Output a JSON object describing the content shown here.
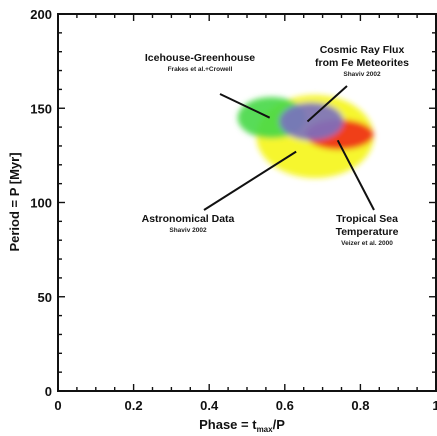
{
  "chart_data": {
    "type": "scatter",
    "title": "",
    "xlabel": "Phase = t",
    "xlabel_sub": "max",
    "xlabel_tail": "/P",
    "ylabel": "Period = P [Myr]",
    "xlim": [
      0,
      1
    ],
    "ylim": [
      0,
      200
    ],
    "x_ticks": [
      "0",
      "0.2",
      "0.4",
      "0.6",
      "0.8",
      "1"
    ],
    "y_ticks": [
      "0",
      "50",
      "100",
      "150",
      "200"
    ],
    "grid": false,
    "regions": [
      {
        "key": "astronomical",
        "color": "#f5f51a",
        "cx": 0.68,
        "cy": 135,
        "rx": 0.155,
        "ry": 22
      },
      {
        "key": "icehouse",
        "color": "#46d846",
        "cx": 0.565,
        "cy": 145,
        "rx": 0.09,
        "ry": 11
      },
      {
        "key": "tropical",
        "color": "#f02a1a",
        "cx": 0.745,
        "cy": 136,
        "rx": 0.09,
        "ry": 8
      },
      {
        "key": "cosmic",
        "color": "#7a6fc2",
        "cx": 0.67,
        "cy": 143,
        "rx": 0.085,
        "ry": 10
      }
    ],
    "annotations": [
      {
        "key": "icehouse",
        "title_lines": [
          "Icehouse-Greenhouse"
        ],
        "source": "Frakes et al.+Crowell",
        "point": [
          0.56,
          145
        ]
      },
      {
        "key": "cosmic",
        "title_lines": [
          "Cosmic Ray Flux",
          "from Fe Meteorites"
        ],
        "source": "Shaviv 2002",
        "point": [
          0.66,
          143
        ]
      },
      {
        "key": "astronomical",
        "title_lines": [
          "Astronomical Data"
        ],
        "source": "Shaviv 2002",
        "point": [
          0.63,
          127
        ]
      },
      {
        "key": "tropical",
        "title_lines": [
          "Tropical Sea",
          "Temperature"
        ],
        "source": "Veizer et al. 2000",
        "point": [
          0.74,
          133
        ]
      }
    ]
  }
}
